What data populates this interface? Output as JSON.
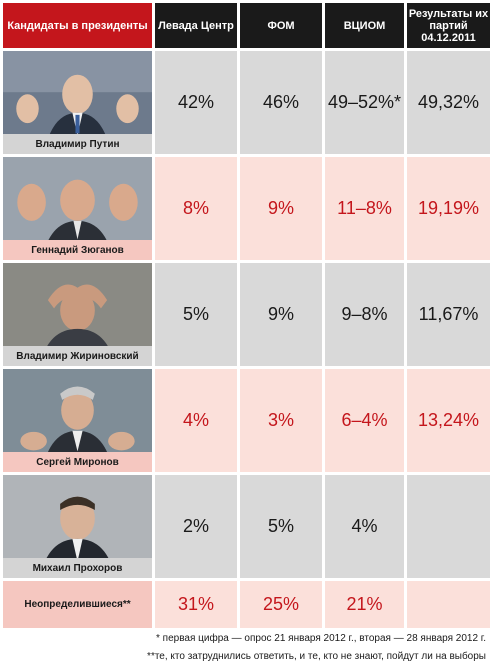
{
  "colors": {
    "header_bg": "#1a1a1a",
    "header_accent": "#c4161c",
    "row_gray": "#d9d9d9",
    "row_pink": "#fbe0da",
    "value_red": "#c4161c"
  },
  "header": {
    "candidates": "Кандидаты в президенты",
    "levada": "Левада Центр",
    "fom": "ФОМ",
    "vciom": "ВЦИОМ",
    "results": "Результаты их партий 04.12.2011"
  },
  "chart_data": {
    "type": "table",
    "columns": [
      "Кандидаты в президенты",
      "Левада Центр",
      "ФОМ",
      "ВЦИОМ",
      "Результаты их партий 04.12.2011"
    ],
    "rows": [
      {
        "name": "Владимир Путин",
        "levada": "42%",
        "fom": "46%",
        "vciom": "49–52%*",
        "party": "49,32%"
      },
      {
        "name": "Геннадий Зюганов",
        "levada": "8%",
        "fom": "9%",
        "vciom": "11–8%",
        "party": "19,19%"
      },
      {
        "name": "Владимир Жириновский",
        "levada": "5%",
        "fom": "9%",
        "vciom": "9–8%",
        "party": "11,67%"
      },
      {
        "name": "Сергей Миронов",
        "levada": "4%",
        "fom": "3%",
        "vciom": "6–4%",
        "party": "13,24%"
      },
      {
        "name": "Михаил Прохоров",
        "levada": "2%",
        "fom": "5%",
        "vciom": "4%",
        "party": ""
      }
    ],
    "undecided": {
      "name": "Неопределившиеся**",
      "levada": "31%",
      "fom": "25%",
      "vciom": "21%",
      "party": ""
    }
  },
  "footnotes": [
    "* первая цифра — опрос 21 января 2012 г., вторая — 28 января 2012 г.",
    "**те, кто затруднились ответить, и те, кто не знают, пойдут ли на выборы"
  ]
}
